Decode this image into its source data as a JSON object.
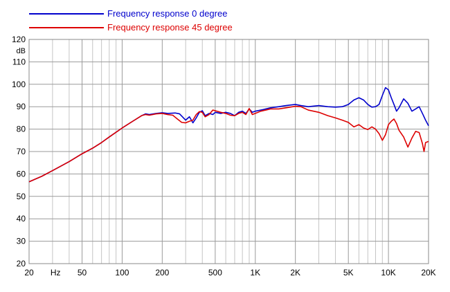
{
  "chart_data": {
    "type": "line",
    "xscale": "log",
    "xlim": [
      20,
      20000
    ],
    "ylim": [
      20,
      120
    ],
    "ylabel": "dB",
    "xlabel": "Hz",
    "grid": true,
    "legend_position": "top-left",
    "x_tick_labels": [
      {
        "value": 20,
        "label": "20"
      },
      {
        "value": 50,
        "label": "50"
      },
      {
        "value": 100,
        "label": "100"
      },
      {
        "value": 200,
        "label": "200"
      },
      {
        "value": 500,
        "label": "500"
      },
      {
        "value": 1000,
        "label": "1K"
      },
      {
        "value": 2000,
        "label": "2K"
      },
      {
        "value": 5000,
        "label": "5K"
      },
      {
        "value": 10000,
        "label": "10K"
      },
      {
        "value": 20000,
        "label": "20K"
      }
    ],
    "y_ticks": [
      20,
      30,
      40,
      50,
      60,
      70,
      80,
      90,
      100,
      110,
      120
    ],
    "series": [
      {
        "name": "Frequency response 0 degree",
        "color": "#0000cc",
        "points": [
          [
            20,
            56.5
          ],
          [
            25,
            59
          ],
          [
            30,
            61.5
          ],
          [
            40,
            65.5
          ],
          [
            50,
            69
          ],
          [
            60,
            71.5
          ],
          [
            70,
            74
          ],
          [
            80,
            76.5
          ],
          [
            100,
            80.5
          ],
          [
            120,
            83.5
          ],
          [
            140,
            86
          ],
          [
            150,
            86.8
          ],
          [
            160,
            86.5
          ],
          [
            180,
            87
          ],
          [
            200,
            87.3
          ],
          [
            220,
            87
          ],
          [
            250,
            87.2
          ],
          [
            270,
            86.8
          ],
          [
            300,
            84
          ],
          [
            320,
            85.5
          ],
          [
            340,
            82.8
          ],
          [
            360,
            85
          ],
          [
            380,
            87.5
          ],
          [
            400,
            88.2
          ],
          [
            420,
            86
          ],
          [
            450,
            87
          ],
          [
            480,
            86.5
          ],
          [
            500,
            87.5
          ],
          [
            550,
            87
          ],
          [
            600,
            87.5
          ],
          [
            650,
            87
          ],
          [
            700,
            86
          ],
          [
            750,
            87.5
          ],
          [
            800,
            88
          ],
          [
            850,
            87
          ],
          [
            900,
            89
          ],
          [
            950,
            87.5
          ],
          [
            1000,
            88
          ],
          [
            1100,
            88.5
          ],
          [
            1200,
            89
          ],
          [
            1300,
            89.5
          ],
          [
            1500,
            90
          ],
          [
            1700,
            90.5
          ],
          [
            2000,
            91
          ],
          [
            2200,
            90.5
          ],
          [
            2500,
            90
          ],
          [
            3000,
            90.5
          ],
          [
            3500,
            90
          ],
          [
            4000,
            89.8
          ],
          [
            4500,
            90
          ],
          [
            5000,
            91
          ],
          [
            5500,
            93
          ],
          [
            6000,
            94
          ],
          [
            6500,
            93
          ],
          [
            7000,
            91
          ],
          [
            7500,
            89.8
          ],
          [
            8000,
            90
          ],
          [
            8500,
            91
          ],
          [
            9000,
            95
          ],
          [
            9500,
            98.5
          ],
          [
            10000,
            97.5
          ],
          [
            10500,
            94
          ],
          [
            11000,
            91
          ],
          [
            11500,
            88
          ],
          [
            12000,
            89.5
          ],
          [
            13000,
            93.5
          ],
          [
            14000,
            91.5
          ],
          [
            15000,
            88
          ],
          [
            16000,
            89
          ],
          [
            17000,
            90
          ],
          [
            18000,
            87
          ],
          [
            19000,
            84
          ],
          [
            20000,
            81.5
          ]
        ]
      },
      {
        "name": "Frequency response 45 degree",
        "color": "#dd0000",
        "points": [
          [
            20,
            56.5
          ],
          [
            25,
            59
          ],
          [
            30,
            61.5
          ],
          [
            40,
            65.5
          ],
          [
            50,
            69
          ],
          [
            60,
            71.5
          ],
          [
            70,
            74
          ],
          [
            80,
            76.5
          ],
          [
            100,
            80.5
          ],
          [
            120,
            83.5
          ],
          [
            140,
            86
          ],
          [
            150,
            86.5
          ],
          [
            160,
            86.2
          ],
          [
            180,
            86.8
          ],
          [
            200,
            87
          ],
          [
            220,
            86.5
          ],
          [
            240,
            86.2
          ],
          [
            260,
            84.5
          ],
          [
            280,
            83
          ],
          [
            300,
            82.8
          ],
          [
            320,
            83.5
          ],
          [
            340,
            84
          ],
          [
            360,
            86.5
          ],
          [
            380,
            87.8
          ],
          [
            400,
            87.5
          ],
          [
            420,
            85.5
          ],
          [
            450,
            86.5
          ],
          [
            480,
            88.5
          ],
          [
            500,
            88.2
          ],
          [
            550,
            87.5
          ],
          [
            600,
            87
          ],
          [
            650,
            86.2
          ],
          [
            700,
            86
          ],
          [
            750,
            87
          ],
          [
            800,
            87.5
          ],
          [
            850,
            86.5
          ],
          [
            900,
            89.2
          ],
          [
            950,
            86.5
          ],
          [
            1000,
            87
          ],
          [
            1100,
            88
          ],
          [
            1200,
            88.5
          ],
          [
            1300,
            89
          ],
          [
            1500,
            89
          ],
          [
            1700,
            89.5
          ],
          [
            2000,
            90.2
          ],
          [
            2200,
            90
          ],
          [
            2500,
            88.5
          ],
          [
            3000,
            87.5
          ],
          [
            3500,
            86
          ],
          [
            4000,
            85
          ],
          [
            4500,
            84
          ],
          [
            5000,
            83
          ],
          [
            5500,
            81
          ],
          [
            6000,
            82
          ],
          [
            6500,
            80.5
          ],
          [
            7000,
            79.8
          ],
          [
            7500,
            81
          ],
          [
            8000,
            80
          ],
          [
            8500,
            78
          ],
          [
            9000,
            75
          ],
          [
            9500,
            77.5
          ],
          [
            10000,
            82
          ],
          [
            10500,
            83.5
          ],
          [
            11000,
            84.5
          ],
          [
            11500,
            82.5
          ],
          [
            12000,
            79.5
          ],
          [
            13000,
            76.5
          ],
          [
            14000,
            72
          ],
          [
            15000,
            76
          ],
          [
            16000,
            79
          ],
          [
            17000,
            78.5
          ],
          [
            18000,
            73.5
          ],
          [
            18500,
            70
          ],
          [
            19000,
            74
          ],
          [
            20000,
            74.5
          ]
        ]
      }
    ]
  }
}
